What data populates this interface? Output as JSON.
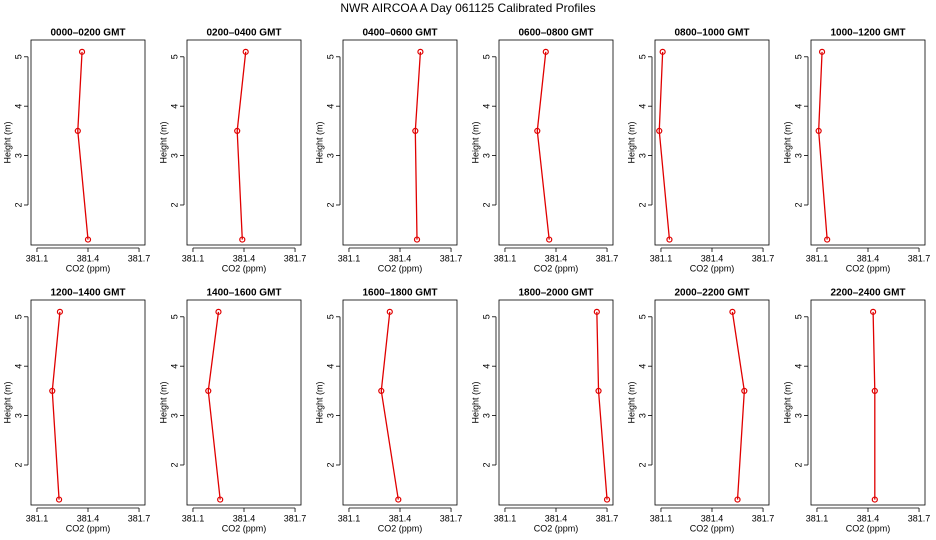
{
  "title": "NWR AIRCOA A  Day 061125  Calibrated Profiles",
  "chart_data": [
    {
      "type": "line",
      "title": "0000–0200 GMT",
      "xlabel": "CO2 (ppm)",
      "ylabel": "Height (m)",
      "color": "#e00000",
      "x": [
        381.365,
        381.34,
        381.4
      ],
      "values": [
        5.1,
        3.5,
        1.3
      ],
      "xlim": [
        381.065,
        381.735
      ],
      "ylim": [
        1.19,
        5.34
      ],
      "xticks": [
        381.1,
        381.4,
        381.7
      ],
      "yticks": [
        2,
        3,
        4,
        5
      ]
    },
    {
      "type": "line",
      "title": "0200–0400 GMT",
      "xlabel": "CO2 (ppm)",
      "ylabel": "Height (m)",
      "color": "#e00000",
      "x": [
        381.41,
        381.36,
        381.39
      ],
      "values": [
        5.1,
        3.5,
        1.3
      ],
      "xlim": [
        381.065,
        381.735
      ],
      "ylim": [
        1.19,
        5.34
      ],
      "xticks": [
        381.1,
        381.4,
        381.7
      ],
      "yticks": [
        2,
        3,
        4,
        5
      ]
    },
    {
      "type": "line",
      "title": "0400–0600 GMT",
      "xlabel": "CO2 (ppm)",
      "ylabel": "Height (m)",
      "color": "#e00000",
      "x": [
        381.52,
        381.49,
        381.5
      ],
      "values": [
        5.1,
        3.5,
        1.3
      ],
      "xlim": [
        381.065,
        381.735
      ],
      "ylim": [
        1.19,
        5.34
      ],
      "xticks": [
        381.1,
        381.4,
        381.7
      ],
      "yticks": [
        2,
        3,
        4,
        5
      ]
    },
    {
      "type": "line",
      "title": "0600–0800 GMT",
      "xlabel": "CO2 (ppm)",
      "ylabel": "Height (m)",
      "color": "#e00000",
      "x": [
        381.34,
        381.29,
        381.36
      ],
      "values": [
        5.1,
        3.5,
        1.3
      ],
      "xlim": [
        381.065,
        381.735
      ],
      "ylim": [
        1.19,
        5.34
      ],
      "xticks": [
        381.1,
        381.4,
        381.7
      ],
      "yticks": [
        2,
        3,
        4,
        5
      ]
    },
    {
      "type": "line",
      "title": "0800–1000 GMT",
      "xlabel": "CO2 (ppm)",
      "ylabel": "Height (m)",
      "color": "#e00000",
      "x": [
        381.11,
        381.09,
        381.15
      ],
      "values": [
        5.1,
        3.5,
        1.3
      ],
      "xlim": [
        381.065,
        381.735
      ],
      "ylim": [
        1.19,
        5.34
      ],
      "xticks": [
        381.1,
        381.4,
        381.7
      ],
      "yticks": [
        2,
        3,
        4,
        5
      ]
    },
    {
      "type": "line",
      "title": "1000–1200 GMT",
      "xlabel": "CO2 (ppm)",
      "ylabel": "Height (m)",
      "color": "#e00000",
      "x": [
        381.13,
        381.11,
        381.16
      ],
      "values": [
        5.1,
        3.5,
        1.3
      ],
      "xlim": [
        381.065,
        381.735
      ],
      "ylim": [
        1.19,
        5.34
      ],
      "xticks": [
        381.1,
        381.4,
        381.7
      ],
      "yticks": [
        2,
        3,
        4,
        5
      ]
    },
    {
      "type": "line",
      "title": "1200–1400 GMT",
      "xlabel": "CO2 (ppm)",
      "ylabel": "Height (m)",
      "color": "#e00000",
      "x": [
        381.235,
        381.19,
        381.23
      ],
      "values": [
        5.1,
        3.5,
        1.3
      ],
      "xlim": [
        381.065,
        381.735
      ],
      "ylim": [
        1.19,
        5.34
      ],
      "xticks": [
        381.1,
        381.4,
        381.7
      ],
      "yticks": [
        2,
        3,
        4,
        5
      ]
    },
    {
      "type": "line",
      "title": "1400–1600 GMT",
      "xlabel": "CO2 (ppm)",
      "ylabel": "Height (m)",
      "color": "#e00000",
      "x": [
        381.25,
        381.19,
        381.26
      ],
      "values": [
        5.1,
        3.5,
        1.3
      ],
      "xlim": [
        381.065,
        381.735
      ],
      "ylim": [
        1.19,
        5.34
      ],
      "xticks": [
        381.1,
        381.4,
        381.7
      ],
      "yticks": [
        2,
        3,
        4,
        5
      ]
    },
    {
      "type": "line",
      "title": "1600–1800 GMT",
      "xlabel": "CO2 (ppm)",
      "ylabel": "Height (m)",
      "color": "#e00000",
      "x": [
        381.34,
        381.29,
        381.39
      ],
      "values": [
        5.1,
        3.5,
        1.3
      ],
      "xlim": [
        381.065,
        381.735
      ],
      "ylim": [
        1.19,
        5.34
      ],
      "xticks": [
        381.1,
        381.4,
        381.7
      ],
      "yticks": [
        2,
        3,
        4,
        5
      ]
    },
    {
      "type": "line",
      "title": "1800–2000 GMT",
      "xlabel": "CO2 (ppm)",
      "ylabel": "Height (m)",
      "color": "#e00000",
      "x": [
        381.64,
        381.65,
        381.7
      ],
      "values": [
        5.1,
        3.5,
        1.3
      ],
      "xlim": [
        381.065,
        381.735
      ],
      "ylim": [
        1.19,
        5.34
      ],
      "xticks": [
        381.1,
        381.4,
        381.7
      ],
      "yticks": [
        2,
        3,
        4,
        5
      ]
    },
    {
      "type": "line",
      "title": "2000–2200 GMT",
      "xlabel": "CO2 (ppm)",
      "ylabel": "Height (m)",
      "color": "#e00000",
      "x": [
        381.52,
        381.59,
        381.55
      ],
      "values": [
        5.1,
        3.5,
        1.3
      ],
      "xlim": [
        381.065,
        381.735
      ],
      "ylim": [
        1.19,
        5.34
      ],
      "xticks": [
        381.1,
        381.4,
        381.7
      ],
      "yticks": [
        2,
        3,
        4,
        5
      ]
    },
    {
      "type": "line",
      "title": "2200–2400 GMT",
      "xlabel": "CO2 (ppm)",
      "ylabel": "Height (m)",
      "color": "#e00000",
      "x": [
        381.43,
        381.44,
        381.44
      ],
      "values": [
        5.1,
        3.5,
        1.3
      ],
      "xlim": [
        381.065,
        381.735
      ],
      "ylim": [
        1.19,
        5.34
      ],
      "xticks": [
        381.1,
        381.4,
        381.7
      ],
      "yticks": [
        2,
        3,
        4,
        5
      ]
    }
  ]
}
